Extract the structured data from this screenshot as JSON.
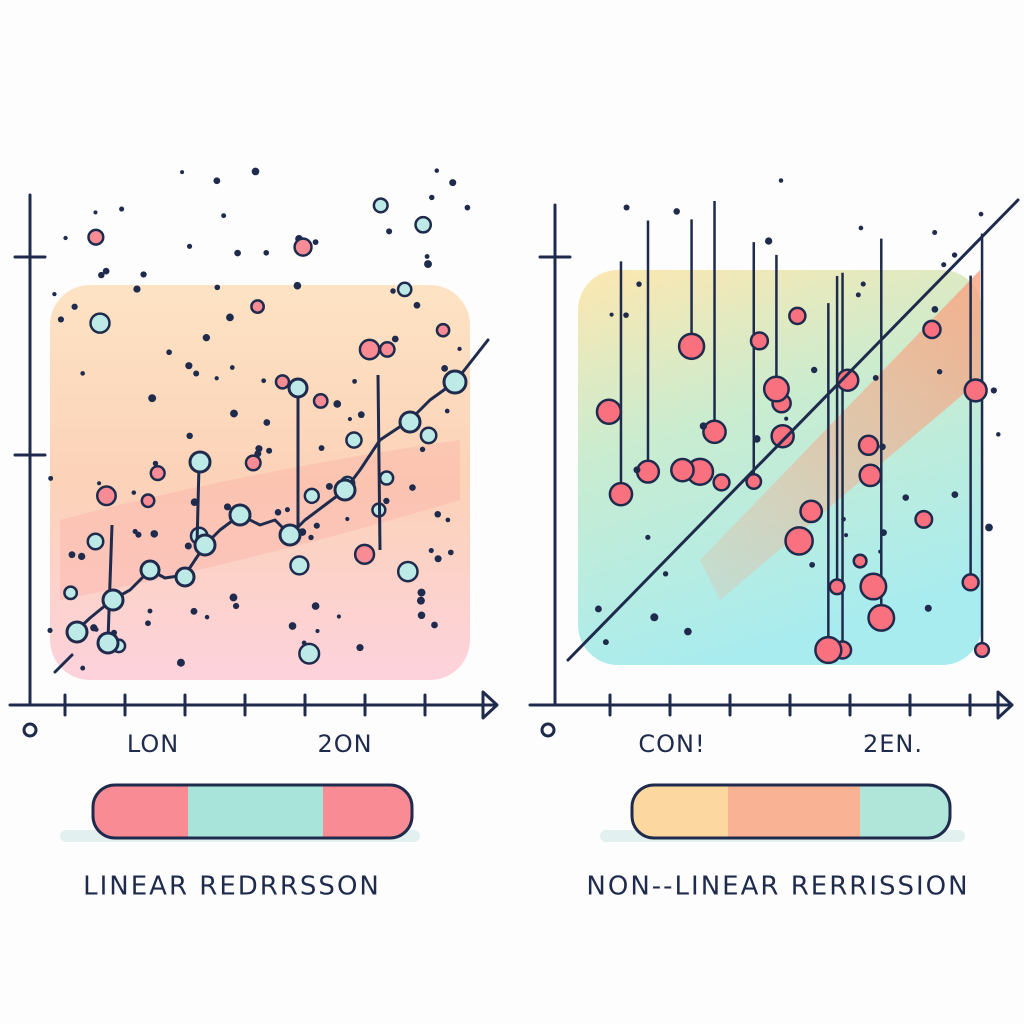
{
  "panels": [
    {
      "x_labels": [
        "LON",
        "2ON"
      ],
      "caption": "LINEAR REDRRSSON"
    },
    {
      "x_labels": [
        "CON!",
        "2EN."
      ],
      "caption": "NON--LINEAR RERRISSION"
    }
  ]
}
